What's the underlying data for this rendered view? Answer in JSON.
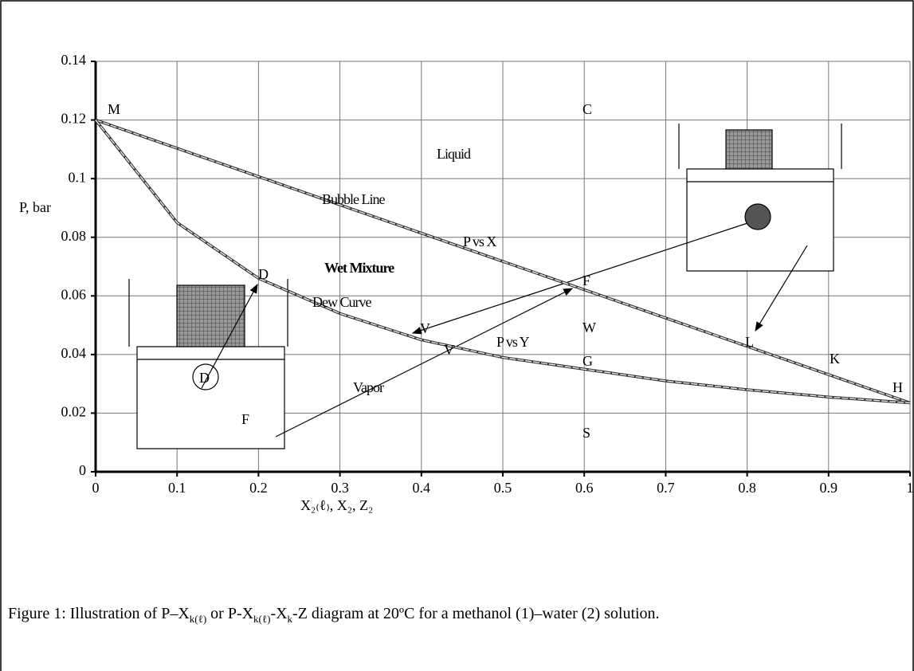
{
  "chart_data": {
    "type": "line",
    "ylabel": "P, bar",
    "xlabel": "X₂₍ℓ₎, X₂,  Z₂",
    "x": [
      0,
      0.1,
      0.2,
      0.3,
      0.4,
      0.5,
      0.6,
      0.7,
      0.8,
      0.9,
      1
    ],
    "series": [
      {
        "name": "Bubble Line",
        "color": "#333333",
        "values": [
          0.12,
          0.11035,
          0.1007,
          0.09105,
          0.0814,
          0.07175,
          0.0621,
          0.05245,
          0.0428,
          0.03315,
          0.0235
        ]
      },
      {
        "name": "Dew Curve",
        "color": "#333333",
        "values": [
          0.12,
          0.085,
          0.066,
          0.054,
          0.045,
          0.039,
          0.035,
          0.031,
          0.028,
          0.0255,
          0.0235
        ]
      }
    ],
    "xlim": [
      0,
      1
    ],
    "xticks": [
      0,
      0.1,
      0.2,
      0.3,
      0.4,
      0.5,
      0.6,
      0.7,
      0.8,
      0.9,
      1
    ],
    "ylim": [
      0,
      0.14
    ],
    "yticks": [
      0,
      0.02,
      0.04,
      0.06,
      0.08,
      0.1,
      0.12,
      0.14
    ],
    "grid": true,
    "annotations": [
      "M",
      "C",
      "Liquid",
      "Bubble Line",
      "P vs X",
      "Wet Mixture",
      "D",
      "Dew Curve",
      "F",
      "V",
      "W",
      "V",
      "P vs Y",
      "G",
      "L",
      "K",
      "H",
      "Vapor",
      "S",
      "D",
      "F"
    ],
    "caption": [
      "Figure 1: Illustration of  P–X",
      "k(ℓ)",
      "  or P-X",
      "k(ℓ)",
      "-X",
      "k",
      "-Z  diagram at 20ºC for a methanol (1)–water (2) solution."
    ]
  }
}
